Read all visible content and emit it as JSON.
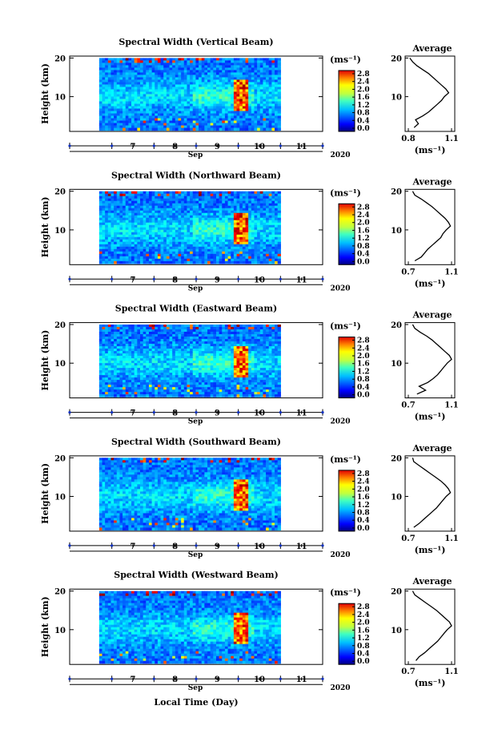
{
  "figure": {
    "xlabel": "Local Time (Day)",
    "month_label": "Sep",
    "year_label": "2020",
    "colorbar_unit": "(ms⁻¹)",
    "avg_title": "Average",
    "avg_unit": "(ms⁻¹)",
    "ylabel": "Height (km)"
  },
  "chart_data": [
    {
      "type": "heatmap",
      "title": "Spectral Width (Vertical Beam)",
      "xlabel": "Local Time (Day)",
      "ylabel": "Height (km)",
      "x_ticks": [
        "7",
        "8",
        "9",
        "10",
        "11"
      ],
      "xlim": [
        6.0,
        12.0
      ],
      "data_xrange": [
        6.7,
        11.0
      ],
      "y_ticks": [
        10,
        20
      ],
      "ylim": [
        1,
        20.5
      ],
      "colorbar": {
        "min": 0.0,
        "max": 2.8,
        "ticks": [
          "2.8",
          "2.4",
          "2.0",
          "1.6",
          "1.2",
          "0.8",
          "0.4",
          "0.0"
        ]
      },
      "average_profile": {
        "xlim": [
          0.8,
          1.1
        ],
        "x_ticks": [
          "0.8",
          "1.1"
        ],
        "height": [
          2,
          3,
          4,
          5,
          6,
          7,
          8,
          9,
          10,
          11,
          12,
          13,
          14,
          15,
          16,
          17,
          18,
          19,
          20
        ],
        "value": [
          0.84,
          0.87,
          0.85,
          0.9,
          0.94,
          0.97,
          1.0,
          1.03,
          1.05,
          1.08,
          1.06,
          1.03,
          1.0,
          0.97,
          0.94,
          0.9,
          0.86,
          0.83,
          0.81
        ]
      }
    },
    {
      "type": "heatmap",
      "title": "Spectral Width (Northward Beam)",
      "xlabel": "Local Time (Day)",
      "ylabel": "Height (km)",
      "x_ticks": [
        "7",
        "8",
        "9",
        "10",
        "11"
      ],
      "xlim": [
        6.0,
        12.0
      ],
      "data_xrange": [
        6.7,
        11.0
      ],
      "y_ticks": [
        10,
        20
      ],
      "ylim": [
        1,
        20.5
      ],
      "colorbar": {
        "min": 0.0,
        "max": 2.8,
        "ticks": [
          "2.8",
          "2.4",
          "2.0",
          "1.6",
          "1.2",
          "0.8",
          "0.4",
          "0.0"
        ]
      },
      "average_profile": {
        "xlim": [
          0.7,
          1.1
        ],
        "x_ticks": [
          "0.7",
          "1.1"
        ],
        "height": [
          2,
          3,
          4,
          5,
          6,
          7,
          8,
          9,
          10,
          11,
          12,
          13,
          14,
          15,
          16,
          17,
          18,
          19,
          20
        ],
        "value": [
          0.76,
          0.82,
          0.85,
          0.88,
          0.92,
          0.96,
          1.0,
          1.02,
          1.05,
          1.09,
          1.07,
          1.04,
          1.0,
          0.96,
          0.92,
          0.87,
          0.82,
          0.76,
          0.74
        ]
      }
    },
    {
      "type": "heatmap",
      "title": "Spectral Width (Eastward Beam)",
      "xlabel": "Local Time (Day)",
      "ylabel": "Height (km)",
      "x_ticks": [
        "7",
        "8",
        "9",
        "10",
        "11"
      ],
      "xlim": [
        6.0,
        12.0
      ],
      "data_xrange": [
        6.7,
        11.0
      ],
      "y_ticks": [
        10,
        20
      ],
      "ylim": [
        1,
        20.5
      ],
      "colorbar": {
        "min": 0.0,
        "max": 2.8,
        "ticks": [
          "2.8",
          "2.4",
          "2.0",
          "1.6",
          "1.2",
          "0.8",
          "0.4",
          "0.0"
        ]
      },
      "average_profile": {
        "xlim": [
          0.7,
          1.1
        ],
        "x_ticks": [
          "0.7",
          "1.1"
        ],
        "height": [
          2,
          3,
          4,
          5,
          6,
          7,
          8,
          9,
          10,
          11,
          12,
          13,
          14,
          15,
          16,
          17,
          18,
          19,
          20
        ],
        "value": [
          0.78,
          0.86,
          0.8,
          0.88,
          0.93,
          0.97,
          1.0,
          1.03,
          1.06,
          1.1,
          1.08,
          1.04,
          1.0,
          0.96,
          0.92,
          0.87,
          0.81,
          0.76,
          0.74
        ]
      }
    },
    {
      "type": "heatmap",
      "title": "Spectral Width (Southward Beam)",
      "xlabel": "Local Time (Day)",
      "ylabel": "Height (km)",
      "x_ticks": [
        "7",
        "8",
        "9",
        "10",
        "11"
      ],
      "xlim": [
        6.0,
        12.0
      ],
      "data_xrange": [
        6.7,
        11.0
      ],
      "y_ticks": [
        10,
        20
      ],
      "ylim": [
        1,
        20.5
      ],
      "colorbar": {
        "min": 0.0,
        "max": 2.8,
        "ticks": [
          "2.8",
          "2.4",
          "2.0",
          "1.6",
          "1.2",
          "0.8",
          "0.4",
          "0.0"
        ]
      },
      "average_profile": {
        "xlim": [
          0.7,
          1.1
        ],
        "x_ticks": [
          "0.7",
          "1.1"
        ],
        "height": [
          2,
          3,
          4,
          5,
          6,
          7,
          8,
          9,
          10,
          11,
          12,
          13,
          14,
          15,
          16,
          17,
          18,
          19,
          20
        ],
        "value": [
          0.75,
          0.8,
          0.84,
          0.88,
          0.92,
          0.96,
          0.99,
          1.02,
          1.05,
          1.09,
          1.07,
          1.04,
          1.0,
          0.95,
          0.9,
          0.85,
          0.8,
          0.75,
          0.74
        ]
      }
    },
    {
      "type": "heatmap",
      "title": "Spectral Width (Westward Beam)",
      "xlabel": "Local Time (Day)",
      "ylabel": "Height (km)",
      "x_ticks": [
        "7",
        "8",
        "9",
        "10",
        "11"
      ],
      "xlim": [
        6.0,
        12.0
      ],
      "data_xrange": [
        6.7,
        11.0
      ],
      "y_ticks": [
        10,
        20
      ],
      "ylim": [
        1,
        20.5
      ],
      "colorbar": {
        "min": 0.0,
        "max": 2.8,
        "ticks": [
          "2.8",
          "2.4",
          "2.0",
          "1.6",
          "1.2",
          "0.8",
          "0.4",
          "0.0"
        ]
      },
      "average_profile": {
        "xlim": [
          0.7,
          1.1
        ],
        "x_ticks": [
          "0.7",
          "1.1"
        ],
        "height": [
          2,
          3,
          4,
          5,
          6,
          7,
          8,
          9,
          10,
          11,
          12,
          13,
          14,
          15,
          16,
          17,
          18,
          19,
          20
        ],
        "value": [
          0.77,
          0.8,
          0.85,
          0.89,
          0.93,
          0.97,
          1.0,
          1.03,
          1.06,
          1.1,
          1.08,
          1.04,
          1.0,
          0.96,
          0.91,
          0.86,
          0.81,
          0.76,
          0.74
        ]
      }
    }
  ]
}
